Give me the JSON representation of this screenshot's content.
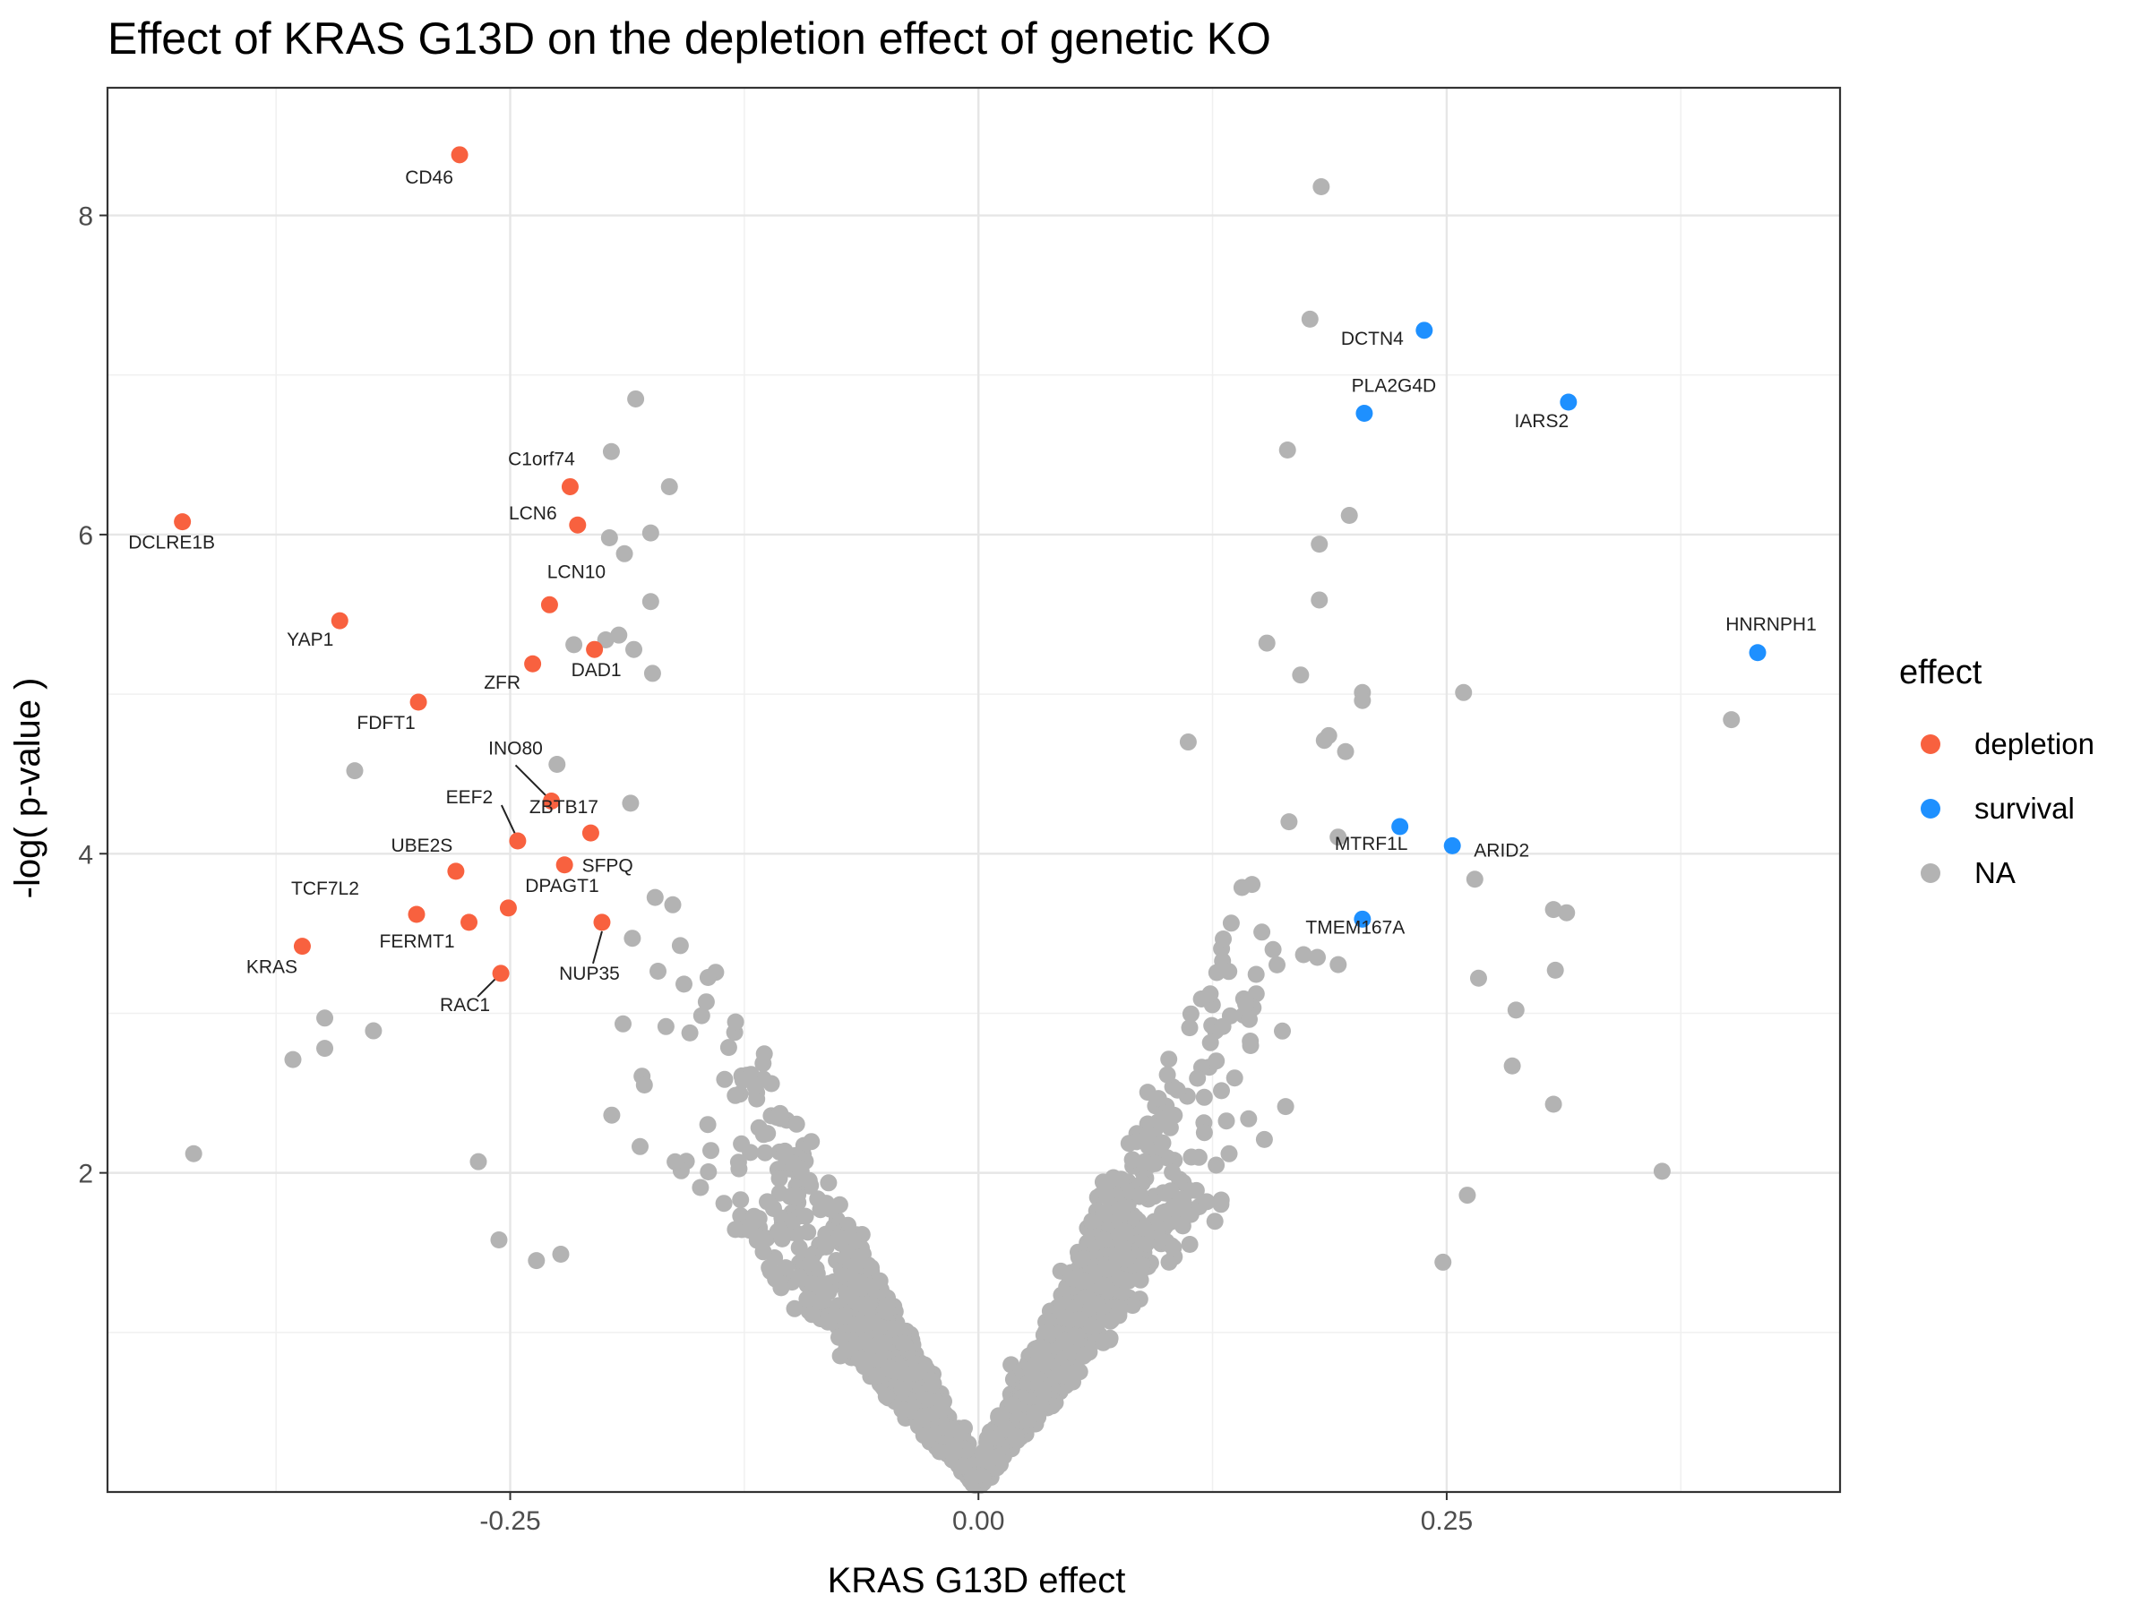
{
  "chart_data": {
    "type": "scatter",
    "title": "Effect of KRAS G13D on the depletion effect of genetic KO",
    "xlabel": "KRAS G13D effect",
    "ylabel": "-log( p-value )",
    "xlim": [
      -0.465,
      0.46
    ],
    "ylim": [
      0.0,
      8.8
    ],
    "xticks": [
      -0.25,
      0.0,
      0.25
    ],
    "xtick_labels": [
      "-0.25",
      "0.00",
      "0.25"
    ],
    "yticks": [
      2,
      4,
      6,
      8
    ],
    "ytick_labels": [
      "2",
      "4",
      "6",
      "8"
    ],
    "grid": true,
    "legend": {
      "title": "effect",
      "position": "right",
      "entries": [
        {
          "label": "depletion",
          "color": "#F8613F"
        },
        {
          "label": "survival",
          "color": "#1E90FF"
        },
        {
          "label": "NA",
          "color": "#B3B3B3"
        }
      ]
    },
    "labeled_points": [
      {
        "gene": "CD46",
        "x": -0.277,
        "y": 8.38,
        "effect": "depletion"
      },
      {
        "gene": "DCLRE1B",
        "x": -0.425,
        "y": 6.08,
        "effect": "depletion"
      },
      {
        "gene": "C1orf74",
        "x": -0.218,
        "y": 6.3,
        "effect": "depletion"
      },
      {
        "gene": "LCN6",
        "x": -0.214,
        "y": 6.06,
        "effect": "depletion"
      },
      {
        "gene": "LCN10",
        "x": -0.229,
        "y": 5.56,
        "effect": "depletion"
      },
      {
        "gene": "YAP1",
        "x": -0.341,
        "y": 5.46,
        "effect": "depletion"
      },
      {
        "gene": "DAD1",
        "x": -0.205,
        "y": 5.28,
        "effect": "depletion"
      },
      {
        "gene": "ZFR",
        "x": -0.238,
        "y": 5.19,
        "effect": "depletion"
      },
      {
        "gene": "FDFT1",
        "x": -0.299,
        "y": 4.95,
        "effect": "depletion"
      },
      {
        "gene": "INO80",
        "x": -0.228,
        "y": 4.33,
        "effect": "depletion"
      },
      {
        "gene": "ZBTB17",
        "x": -0.207,
        "y": 4.13,
        "effect": "depletion"
      },
      {
        "gene": "EEF2",
        "x": -0.246,
        "y": 4.08,
        "effect": "depletion"
      },
      {
        "gene": "SFPQ",
        "x": -0.221,
        "y": 3.93,
        "effect": "depletion"
      },
      {
        "gene": "UBE2S",
        "x": -0.279,
        "y": 3.89,
        "effect": "depletion"
      },
      {
        "gene": "TCF7L2",
        "x": -0.3,
        "y": 3.62,
        "effect": "depletion"
      },
      {
        "gene": "FERMT1",
        "x": -0.272,
        "y": 3.57,
        "effect": "depletion"
      },
      {
        "gene": "DPAGT1",
        "x": -0.251,
        "y": 3.66,
        "effect": "depletion"
      },
      {
        "gene": "NUP35",
        "x": -0.201,
        "y": 3.57,
        "effect": "depletion"
      },
      {
        "gene": "KRAS",
        "x": -0.361,
        "y": 3.42,
        "effect": "depletion"
      },
      {
        "gene": "RAC1",
        "x": -0.255,
        "y": 3.25,
        "effect": "depletion"
      },
      {
        "gene": "DCTN4",
        "x": 0.238,
        "y": 7.28,
        "effect": "survival"
      },
      {
        "gene": "PLA2G4D",
        "x": 0.206,
        "y": 6.76,
        "effect": "survival"
      },
      {
        "gene": "IARS2",
        "x": 0.315,
        "y": 6.83,
        "effect": "survival"
      },
      {
        "gene": "HNRNPH1",
        "x": 0.416,
        "y": 5.26,
        "effect": "survival"
      },
      {
        "gene": "MTRF1L",
        "x": 0.225,
        "y": 4.17,
        "effect": "survival"
      },
      {
        "gene": "ARID2",
        "x": 0.253,
        "y": 4.05,
        "effect": "survival"
      },
      {
        "gene": "TMEM167A",
        "x": 0.205,
        "y": 3.59,
        "effect": "survival"
      }
    ],
    "na_outliers": [
      {
        "x": 0.183,
        "y": 8.18
      },
      {
        "x": 0.177,
        "y": 7.35
      },
      {
        "x": -0.183,
        "y": 6.85
      },
      {
        "x": -0.196,
        "y": 6.52
      },
      {
        "x": 0.165,
        "y": 6.53
      },
      {
        "x": -0.165,
        "y": 6.3
      },
      {
        "x": -0.175,
        "y": 6.01
      },
      {
        "x": -0.197,
        "y": 5.98
      },
      {
        "x": -0.189,
        "y": 5.88
      },
      {
        "x": 0.198,
        "y": 6.12
      },
      {
        "x": 0.182,
        "y": 5.94
      },
      {
        "x": -0.175,
        "y": 5.58
      },
      {
        "x": 0.182,
        "y": 5.59
      },
      {
        "x": -0.192,
        "y": 5.37
      },
      {
        "x": -0.199,
        "y": 5.34
      },
      {
        "x": -0.216,
        "y": 5.31
      },
      {
        "x": -0.184,
        "y": 5.28
      },
      {
        "x": 0.154,
        "y": 5.32
      },
      {
        "x": -0.174,
        "y": 5.13
      },
      {
        "x": 0.172,
        "y": 5.12
      },
      {
        "x": 0.205,
        "y": 5.01
      },
      {
        "x": 0.259,
        "y": 5.01
      },
      {
        "x": 0.205,
        "y": 4.96
      },
      {
        "x": 0.402,
        "y": 4.84
      },
      {
        "x": -0.333,
        "y": 4.52
      },
      {
        "x": -0.225,
        "y": 4.56
      },
      {
        "x": 0.112,
        "y": 4.7
      },
      {
        "x": 0.196,
        "y": 4.64
      },
      {
        "x": 0.187,
        "y": 4.74
      },
      {
        "x": 0.365,
        "y": 2.01
      },
      {
        "x": 0.314,
        "y": 3.63
      },
      {
        "x": 0.307,
        "y": 3.65
      },
      {
        "x": 0.308,
        "y": 3.27
      },
      {
        "x": 0.307,
        "y": 2.43
      },
      {
        "x": 0.287,
        "y": 3.02
      },
      {
        "x": 0.285,
        "y": 2.67
      },
      {
        "x": 0.265,
        "y": 3.84
      },
      {
        "x": 0.261,
        "y": 1.86
      },
      {
        "x": 0.267,
        "y": 3.22
      },
      {
        "x": 0.248,
        "y": 1.44
      },
      {
        "x": -0.419,
        "y": 2.12
      },
      {
        "x": -0.366,
        "y": 2.71
      },
      {
        "x": -0.349,
        "y": 2.78
      },
      {
        "x": -0.349,
        "y": 2.97
      },
      {
        "x": -0.323,
        "y": 2.89
      },
      {
        "x": -0.267,
        "y": 2.07
      },
      {
        "x": -0.256,
        "y": 1.58
      },
      {
        "x": -0.236,
        "y": 1.45
      },
      {
        "x": -0.223,
        "y": 1.49
      }
    ],
    "na_cloud": {
      "count": 1550,
      "description_shape": "V-shaped distribution of non-significant genes centered at x = 0, y rising with |x|",
      "color": "#B3B3B3"
    }
  }
}
